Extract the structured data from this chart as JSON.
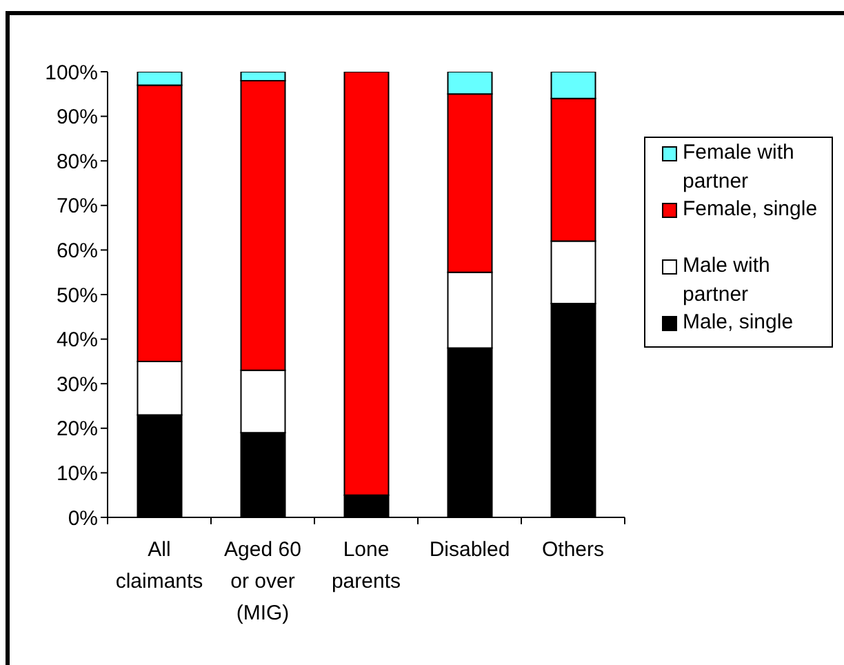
{
  "chart_data": {
    "type": "bar",
    "categories": [
      "All claimants",
      "Aged 60 or over (MIG)",
      "Lone parents",
      "Disabled",
      "Others"
    ],
    "stacked": true,
    "series": [
      {
        "name": "Male, single",
        "color": "#000000",
        "values": [
          23,
          19,
          5,
          38,
          48
        ]
      },
      {
        "name": "Male with partner",
        "color": "#ffffff",
        "values": [
          12,
          14,
          0,
          17,
          14
        ]
      },
      {
        "name": "Female, single",
        "color": "#ff0000",
        "values": [
          62,
          65,
          95,
          40,
          32
        ]
      },
      {
        "name": "Female with partner",
        "color": "#66ffff",
        "values": [
          3,
          2,
          0,
          5,
          6
        ]
      }
    ],
    "ylim": [
      0,
      100
    ],
    "yticks": [
      {
        "value": 0,
        "label": "0%"
      },
      {
        "value": 10,
        "label": "10%"
      },
      {
        "value": 20,
        "label": "20%"
      },
      {
        "value": 30,
        "label": "30%"
      },
      {
        "value": 40,
        "label": "40%"
      },
      {
        "value": 50,
        "label": "50%"
      },
      {
        "value": 60,
        "label": "60%"
      },
      {
        "value": 70,
        "label": "70%"
      },
      {
        "value": 80,
        "label": "80%"
      },
      {
        "value": 90,
        "label": "90%"
      },
      {
        "value": 100,
        "label": "100%"
      }
    ],
    "legend": "right"
  }
}
